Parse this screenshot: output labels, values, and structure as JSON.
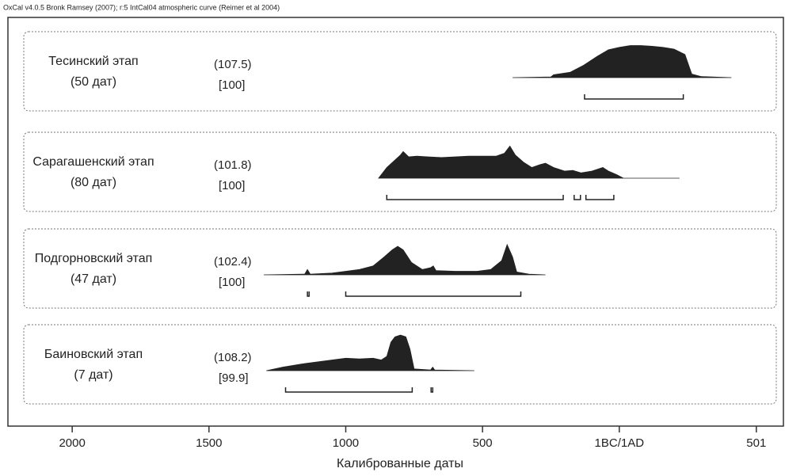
{
  "chart_data": {
    "type": "oxcal-multiplot",
    "header": "OxCal v4.0.5 Bronk Ramsey (2007); r:5 IntCal04 atmospheric curve (Reimer et al 2004)",
    "xlabel": "Калиброванные даты",
    "xlim": [
      -2235,
      600
    ],
    "xticks": [
      {
        "value": -2000,
        "label": "2000"
      },
      {
        "value": -1500,
        "label": "1500"
      },
      {
        "value": -1000,
        "label": "1000"
      },
      {
        "value": -500,
        "label": "500"
      },
      {
        "value": 0,
        "label": "1BC/1AD"
      },
      501
    ],
    "color": "#222222",
    "panels": [
      {
        "name": "Тесинский этап",
        "count": "(50 дат)",
        "agreement": "(107.5)",
        "overall": "[100]",
        "x": [
          -390,
          -250,
          -240,
          -180,
          -130,
          -80,
          -40,
          0,
          40,
          80,
          120,
          160,
          200,
          240,
          265,
          300,
          410
        ],
        "values": [
          0,
          0.02,
          0.08,
          0.15,
          0.35,
          0.6,
          0.78,
          0.85,
          0.9,
          0.9,
          0.88,
          0.85,
          0.8,
          0.65,
          0.1,
          0.03,
          0
        ],
        "ranges": [
          [
            -127,
            234
          ]
        ]
      },
      {
        "name": "Сарагашенский этап",
        "count": "(80 дат)",
        "agreement": "(101.8)",
        "overall": "[100]",
        "x": [
          -880,
          -850,
          -800,
          -790,
          -770,
          -740,
          -700,
          -650,
          -600,
          -550,
          -500,
          -450,
          -420,
          -400,
          -380,
          -350,
          -320,
          -290,
          -270,
          -240,
          -200,
          -170,
          -140,
          -100,
          -60,
          -40,
          -10,
          15,
          220
        ],
        "values": [
          0,
          0.3,
          0.65,
          0.75,
          0.6,
          0.62,
          0.6,
          0.58,
          0.6,
          0.62,
          0.62,
          0.62,
          0.7,
          0.9,
          0.65,
          0.45,
          0.3,
          0.38,
          0.42,
          0.3,
          0.2,
          0.22,
          0.15,
          0.2,
          0.3,
          0.2,
          0.1,
          0,
          0
        ],
        "ranges": [
          [
            -850,
            -205
          ],
          [
            -165,
            -142
          ],
          [
            -122,
            -20
          ]
        ]
      },
      {
        "name": "Подгорновский этап",
        "count": "(47 дат)",
        "agreement": "(102.4)",
        "overall": "[100]",
        "x": [
          -1300,
          -1150,
          -1140,
          -1130,
          -1050,
          -1000,
          -950,
          -900,
          -860,
          -830,
          -810,
          -790,
          -760,
          -720,
          -690,
          -680,
          -670,
          -600,
          -520,
          -470,
          -430,
          -410,
          -390,
          -375,
          -330,
          -270
        ],
        "values": [
          0,
          0.02,
          0.15,
          0.02,
          0.05,
          0.1,
          0.15,
          0.25,
          0.5,
          0.7,
          0.8,
          0.7,
          0.35,
          0.15,
          0.2,
          0.25,
          0.12,
          0.1,
          0.1,
          0.15,
          0.4,
          0.85,
          0.5,
          0.08,
          0.02,
          0
        ],
        "ranges": [
          [
            -1140,
            -1134
          ],
          [
            -1000,
            -360
          ]
        ]
      },
      {
        "name": "Баиновский этап",
        "count": "(7 дат)",
        "agreement": "(108.2)",
        "overall": "[99.9]",
        "x": [
          -1290,
          -1230,
          -1150,
          -1100,
          -1050,
          -1000,
          -950,
          -900,
          -870,
          -850,
          -835,
          -820,
          -800,
          -780,
          -765,
          -750,
          -690,
          -682,
          -675,
          -530
        ],
        "values": [
          0,
          0.1,
          0.2,
          0.25,
          0.3,
          0.35,
          0.33,
          0.35,
          0.3,
          0.4,
          0.8,
          0.95,
          1,
          0.95,
          0.6,
          0.05,
          0.02,
          0.1,
          0.02,
          0
        ],
        "ranges": [
          [
            -1220,
            -757
          ],
          [
            -688,
            -682
          ]
        ]
      }
    ]
  }
}
